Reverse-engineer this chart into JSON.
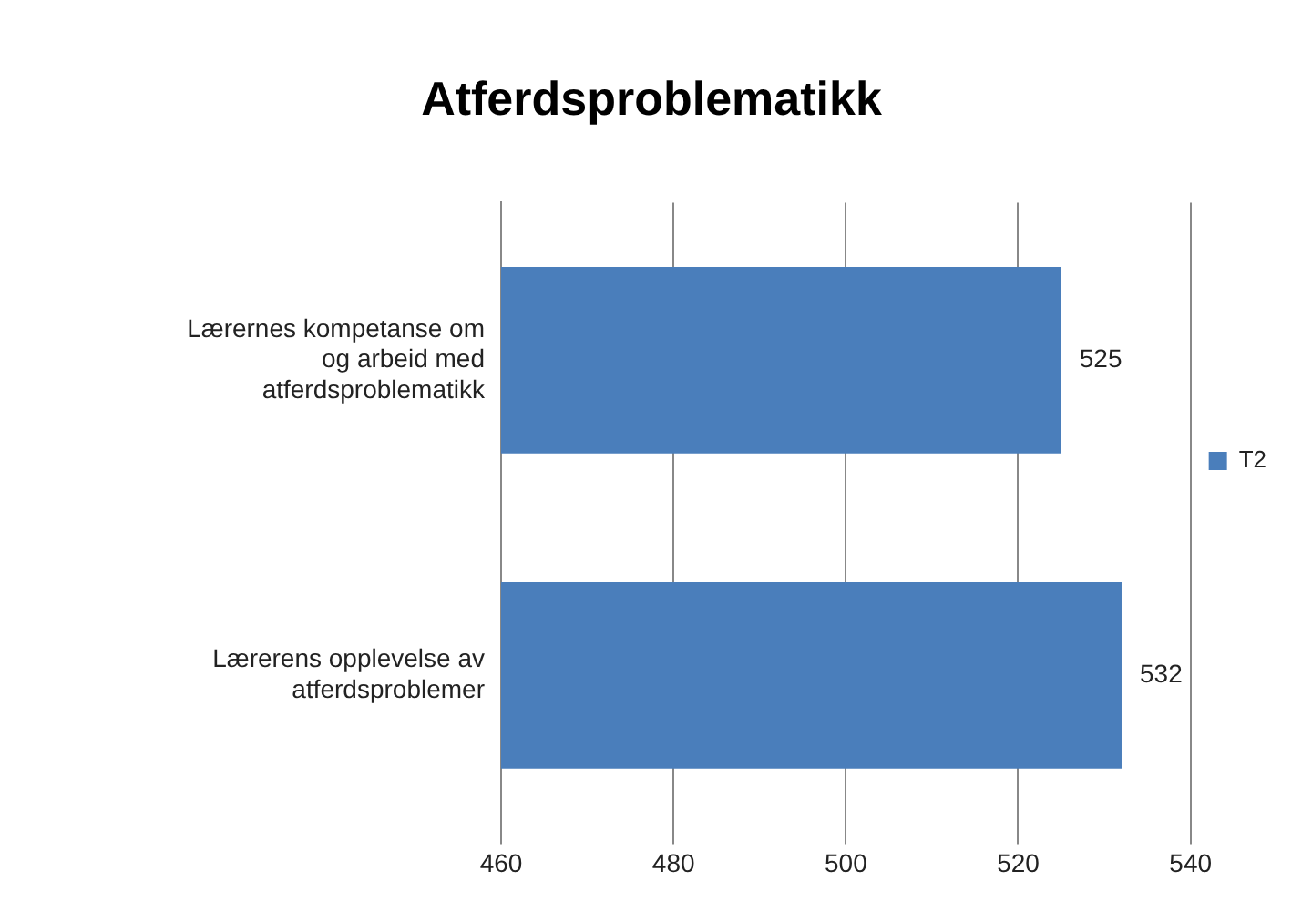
{
  "chart_data": {
    "type": "bar",
    "orientation": "horizontal",
    "title": "Atferdsproblematikk",
    "categories": [
      "Lærernes kompetanse om og arbeid med atferdsproblematikk",
      "Lærerens opplevelse av atferdsproblemer"
    ],
    "series": [
      {
        "name": "T2",
        "color": "#4a7ebb",
        "values": [
          525,
          532
        ]
      }
    ],
    "xlim": [
      460,
      540
    ],
    "xticks": [
      460,
      480,
      500,
      520,
      540
    ],
    "grid": "x",
    "legend": "right",
    "data_labels": true
  }
}
